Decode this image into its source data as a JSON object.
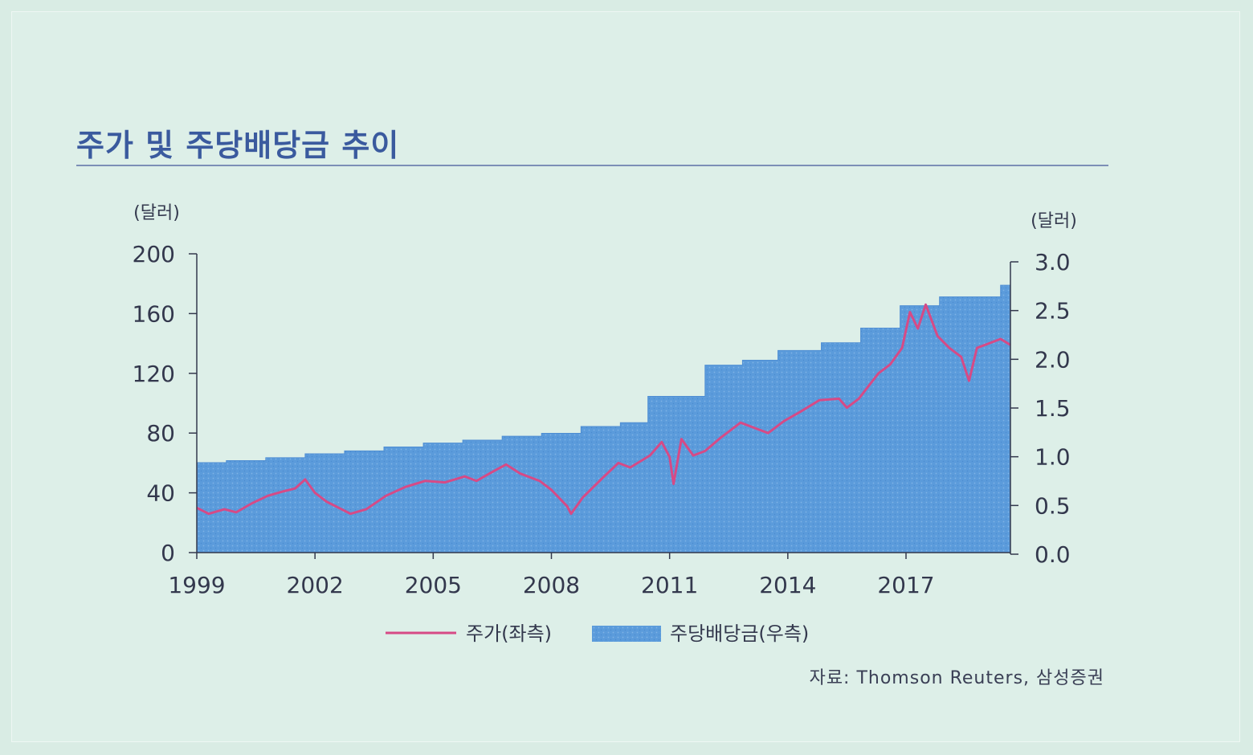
{
  "title": "주가 및 주당배당금 추이",
  "source": "자료: Thomson Reuters, 삼성증권",
  "colors": {
    "price_line": "#d64a86",
    "dividend_fill": "#5b9bdb",
    "axis": "#33384d",
    "title": "#3a5a9e"
  },
  "chart_data": {
    "type": "bar",
    "title": "주가 및 주당배당금 추이",
    "y_left": {
      "unit_label": "(달러)",
      "ylim": [
        0,
        200
      ],
      "ticks": [
        "0",
        "40",
        "80",
        "120",
        "160",
        "200"
      ]
    },
    "y_right": {
      "unit_label": "(달러)",
      "ylim": [
        0,
        3.0
      ],
      "ticks": [
        "0.0",
        "0.5",
        "1.0",
        "1.5",
        "2.0",
        "2.5",
        "3.0"
      ]
    },
    "x_axis": {
      "range": [
        1999,
        2019.65
      ],
      "ticks": [
        "1999",
        "2002",
        "2005",
        "2008",
        "2011",
        "2014",
        "2017"
      ]
    },
    "legend": {
      "placement": "bottom-center",
      "items": [
        "주가(좌측)",
        "주당배당금(우측)"
      ]
    },
    "series": [
      {
        "name": "주당배당금(우측)",
        "type": "step-area",
        "axis": "right",
        "points": [
          [
            1999.0,
            0.94
          ],
          [
            1999.75,
            0.96
          ],
          [
            2000.75,
            0.99
          ],
          [
            2001.75,
            1.03
          ],
          [
            2002.75,
            1.06
          ],
          [
            2003.75,
            1.1
          ],
          [
            2004.75,
            1.14
          ],
          [
            2005.75,
            1.17
          ],
          [
            2006.75,
            1.21
          ],
          [
            2007.75,
            1.24
          ],
          [
            2008.75,
            1.31
          ],
          [
            2009.75,
            1.35
          ],
          [
            2010.45,
            1.62
          ],
          [
            2011.9,
            1.94
          ],
          [
            2012.85,
            1.99
          ],
          [
            2013.75,
            2.09
          ],
          [
            2014.85,
            2.17
          ],
          [
            2015.85,
            2.32
          ],
          [
            2016.85,
            2.55
          ],
          [
            2017.85,
            2.64
          ],
          [
            2019.4,
            2.76
          ]
        ],
        "end_x": 2019.65
      },
      {
        "name": "주가(좌측)",
        "type": "line",
        "axis": "left",
        "points": [
          [
            1999.0,
            30
          ],
          [
            1999.3,
            26
          ],
          [
            1999.7,
            29
          ],
          [
            2000.0,
            27
          ],
          [
            2000.4,
            33
          ],
          [
            2000.8,
            38
          ],
          [
            2001.2,
            41
          ],
          [
            2001.5,
            43
          ],
          [
            2001.75,
            49
          ],
          [
            2002.0,
            40
          ],
          [
            2002.3,
            34
          ],
          [
            2002.6,
            30
          ],
          [
            2002.9,
            26
          ],
          [
            2003.3,
            29
          ],
          [
            2003.8,
            38
          ],
          [
            2004.3,
            44
          ],
          [
            2004.8,
            48
          ],
          [
            2005.3,
            47
          ],
          [
            2005.8,
            51
          ],
          [
            2006.1,
            48
          ],
          [
            2006.5,
            54
          ],
          [
            2006.85,
            59
          ],
          [
            2007.2,
            53
          ],
          [
            2007.7,
            48
          ],
          [
            2008.0,
            42
          ],
          [
            2008.4,
            31
          ],
          [
            2008.5,
            26
          ],
          [
            2008.8,
            37
          ],
          [
            2009.3,
            50
          ],
          [
            2009.7,
            60
          ],
          [
            2010.0,
            57
          ],
          [
            2010.5,
            65
          ],
          [
            2010.8,
            74
          ],
          [
            2011.0,
            64
          ],
          [
            2011.1,
            46
          ],
          [
            2011.3,
            76
          ],
          [
            2011.6,
            65
          ],
          [
            2011.9,
            68
          ],
          [
            2012.3,
            77
          ],
          [
            2012.8,
            87
          ],
          [
            2013.2,
            83
          ],
          [
            2013.5,
            80
          ],
          [
            2013.9,
            88
          ],
          [
            2014.3,
            94
          ],
          [
            2014.8,
            102
          ],
          [
            2015.3,
            103
          ],
          [
            2015.5,
            97
          ],
          [
            2015.8,
            103
          ],
          [
            2016.3,
            120
          ],
          [
            2016.6,
            126
          ],
          [
            2016.9,
            137
          ],
          [
            2017.1,
            161
          ],
          [
            2017.3,
            150
          ],
          [
            2017.5,
            166
          ],
          [
            2017.8,
            145
          ],
          [
            2018.1,
            137
          ],
          [
            2018.4,
            131
          ],
          [
            2018.6,
            115
          ],
          [
            2018.8,
            137
          ],
          [
            2019.1,
            140
          ],
          [
            2019.4,
            143
          ],
          [
            2019.65,
            139
          ]
        ]
      }
    ]
  }
}
